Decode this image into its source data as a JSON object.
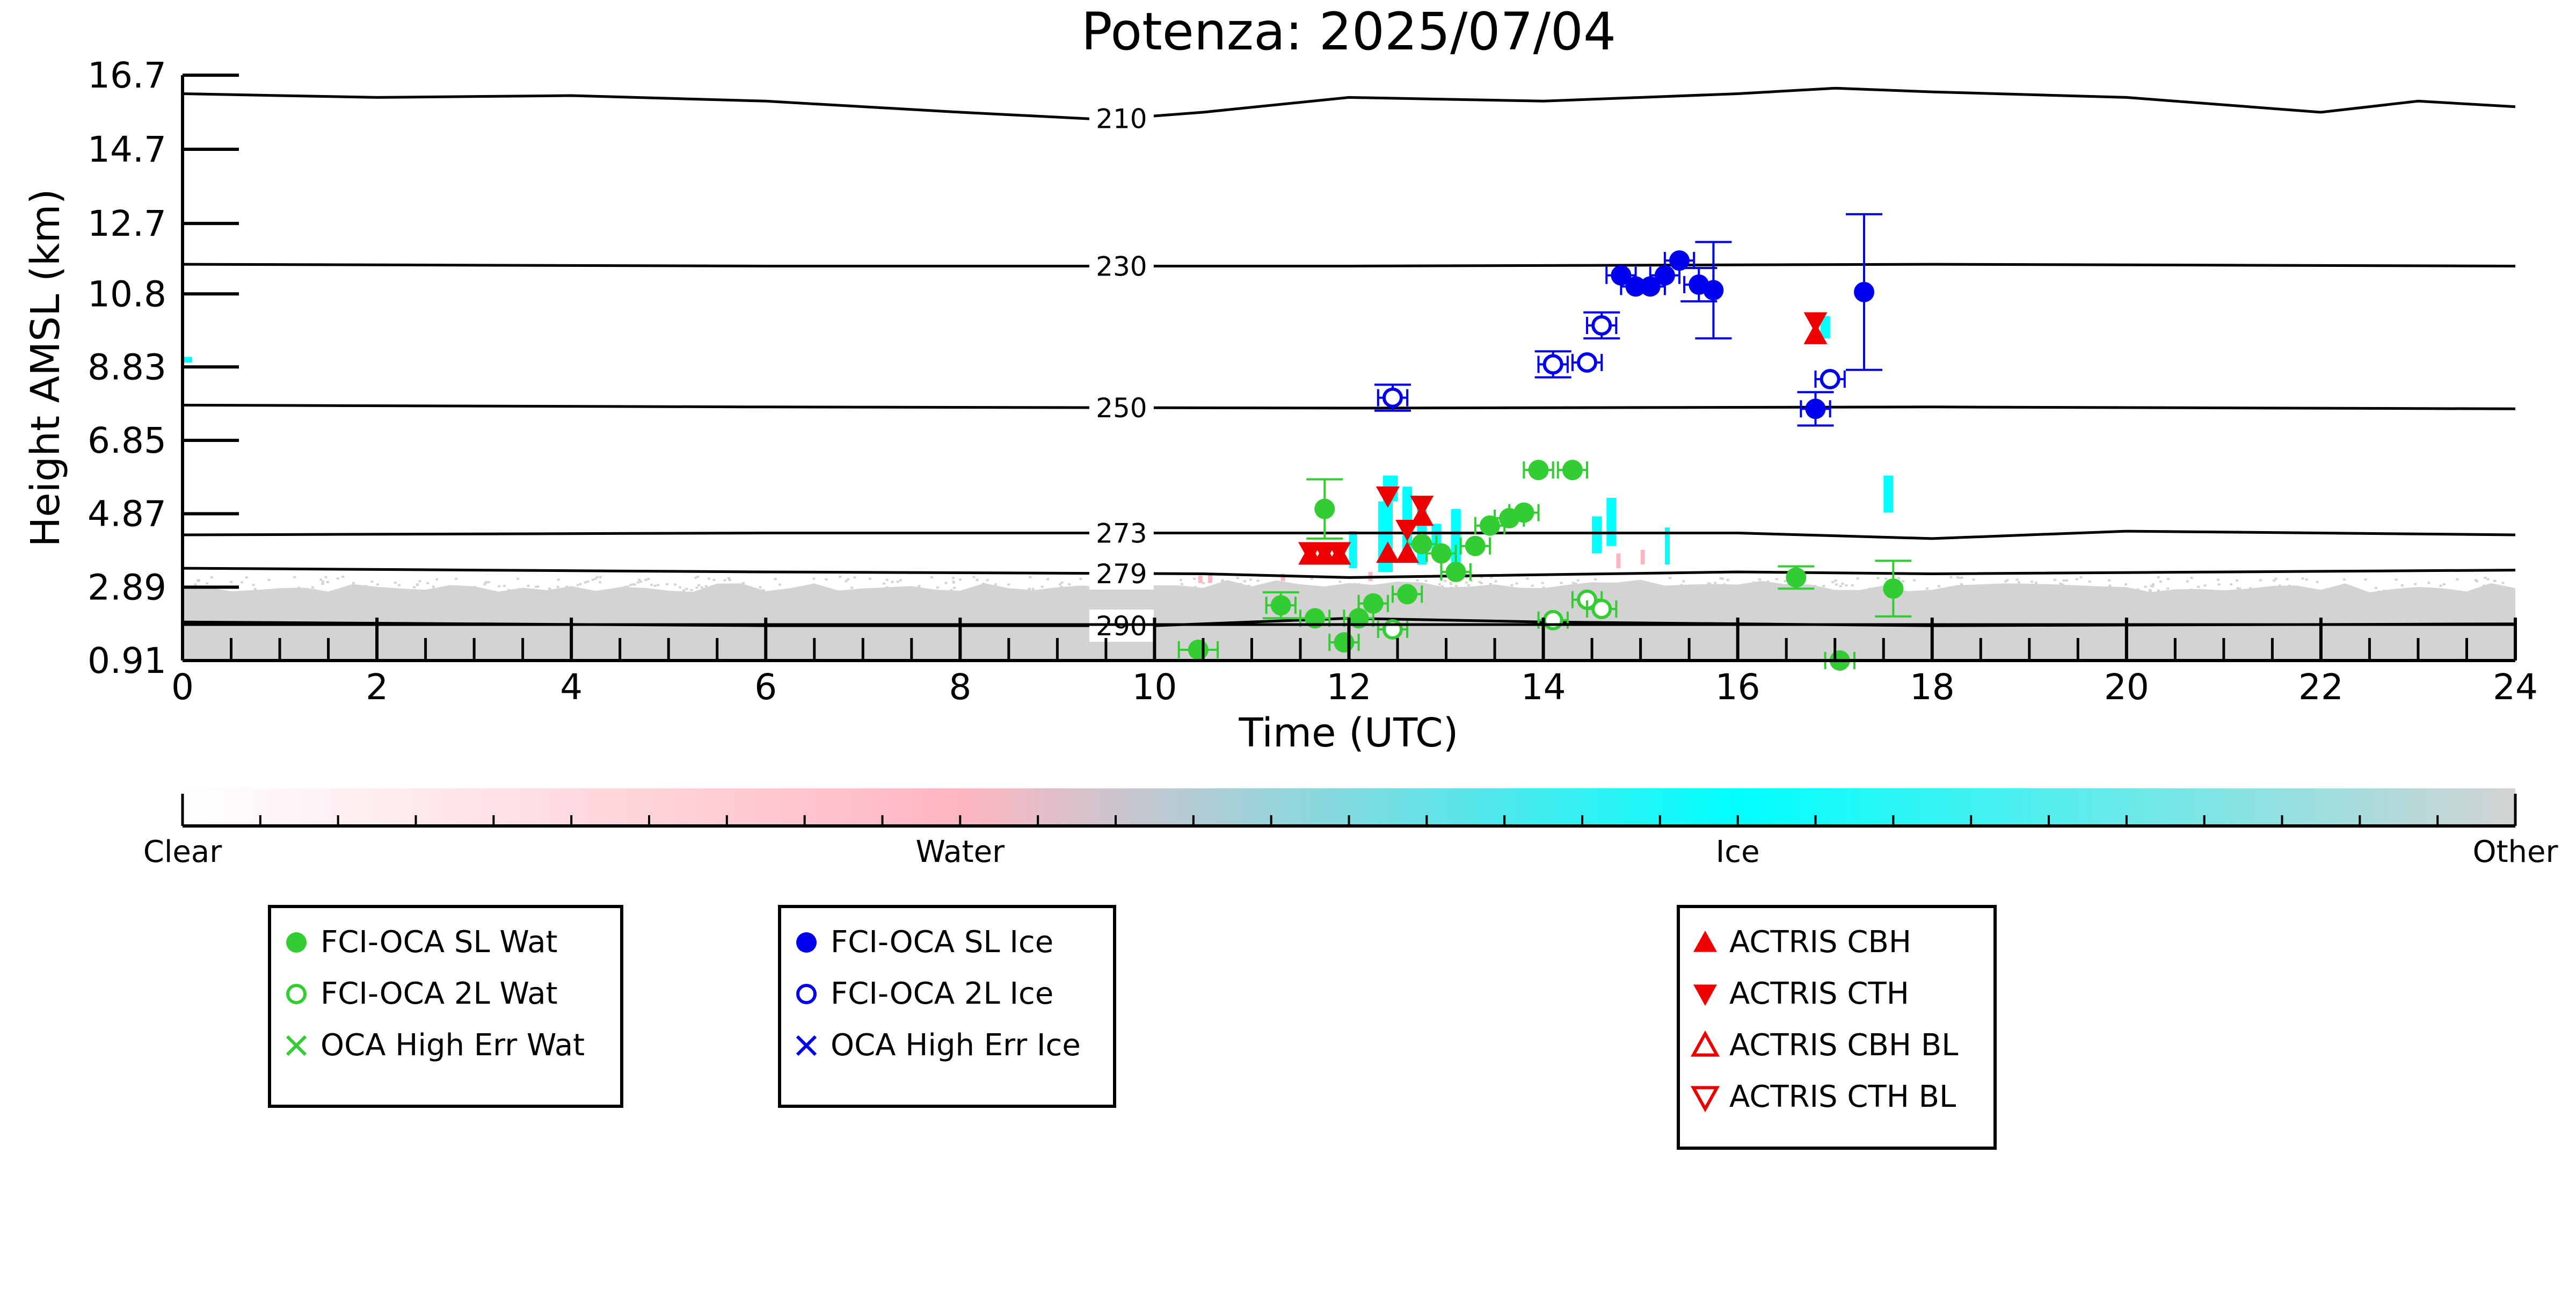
{
  "chart_data": {
    "type": "scatter",
    "title": "Potenza: 2025/07/04",
    "xlabel": "Time (UTC)",
    "ylabel": "Height AMSL (km)",
    "xlim": [
      0,
      24
    ],
    "ylim": [
      0.91,
      16.7
    ],
    "x_ticks": [
      "0",
      "2",
      "4",
      "6",
      "8",
      "10",
      "12",
      "14",
      "16",
      "18",
      "20",
      "22",
      "24"
    ],
    "y_ticks": [
      "0.91",
      "2.89",
      "4.87",
      "6.85",
      "8.83",
      "10.8",
      "12.7",
      "14.7",
      "16.7"
    ],
    "colors": {
      "water_marker": "#33cc33",
      "ice_marker": "#0000ee",
      "actris_marker": "#ee0000",
      "ice_mask": "#00ffff",
      "water_mask": "#ffb6c1",
      "other_mask": "#d3d3d3"
    },
    "isotherms": [
      {
        "label": "210",
        "points": [
          [
            0,
            16.2
          ],
          [
            2,
            16.1
          ],
          [
            4,
            16.15
          ],
          [
            6,
            16.0
          ],
          [
            8,
            15.7
          ],
          [
            9.5,
            15.5
          ],
          [
            10.5,
            15.7
          ],
          [
            12,
            16.1
          ],
          [
            14,
            16.0
          ],
          [
            16,
            16.2
          ],
          [
            17,
            16.35
          ],
          [
            18,
            16.25
          ],
          [
            20,
            16.1
          ],
          [
            22,
            15.7
          ],
          [
            23,
            16.0
          ],
          [
            24,
            15.85
          ]
        ]
      },
      {
        "label": "230",
        "points": [
          [
            0,
            11.6
          ],
          [
            6,
            11.55
          ],
          [
            12,
            11.55
          ],
          [
            18,
            11.6
          ],
          [
            24,
            11.55
          ]
        ]
      },
      {
        "label": "250",
        "points": [
          [
            0,
            7.8
          ],
          [
            6,
            7.75
          ],
          [
            12,
            7.72
          ],
          [
            18,
            7.75
          ],
          [
            24,
            7.7
          ]
        ]
      },
      {
        "label": "273",
        "points": [
          [
            0,
            4.3
          ],
          [
            6,
            4.35
          ],
          [
            12,
            4.35
          ],
          [
            16,
            4.35
          ],
          [
            18,
            4.2
          ],
          [
            20,
            4.4
          ],
          [
            24,
            4.3
          ]
        ]
      },
      {
        "label": "279",
        "points": [
          [
            0,
            3.4
          ],
          [
            6,
            3.3
          ],
          [
            10.5,
            3.25
          ],
          [
            12,
            3.15
          ],
          [
            16,
            3.3
          ],
          [
            18,
            3.25
          ],
          [
            24,
            3.35
          ]
        ]
      },
      {
        "label": "290",
        "points": [
          [
            0,
            1.95
          ],
          [
            6,
            1.85
          ],
          [
            10,
            1.85
          ],
          [
            12,
            2.05
          ],
          [
            14,
            1.95
          ],
          [
            18,
            1.85
          ],
          [
            24,
            1.9
          ]
        ]
      }
    ],
    "series": [
      {
        "name": "FCI-OCA SL Wat",
        "marker": "filled-circle",
        "color": "#33cc33",
        "points": [
          {
            "x": 10.45,
            "y": 1.2,
            "xerr": 0.2
          },
          {
            "x": 11.3,
            "y": 2.4,
            "yerr": 0.35,
            "xerr": 0.15
          },
          {
            "x": 11.65,
            "y": 2.05,
            "xerr": 0.15
          },
          {
            "x": 11.75,
            "y": 5.0,
            "yerr": 0.8
          },
          {
            "x": 11.95,
            "y": 1.4,
            "xerr": 0.15
          },
          {
            "x": 12.1,
            "y": 2.05,
            "xerr": 0.15
          },
          {
            "x": 12.25,
            "y": 2.45,
            "xerr": 0.15
          },
          {
            "x": 12.6,
            "y": 2.7,
            "xerr": 0.15
          },
          {
            "x": 12.75,
            "y": 4.05,
            "xerr": 0.15
          },
          {
            "x": 12.95,
            "y": 3.8,
            "xerr": 0.15
          },
          {
            "x": 13.1,
            "y": 3.3,
            "xerr": 0.15
          },
          {
            "x": 13.3,
            "y": 4.0,
            "xerr": 0.15
          },
          {
            "x": 13.45,
            "y": 4.55,
            "xerr": 0.15
          },
          {
            "x": 13.65,
            "y": 4.75,
            "xerr": 0.15
          },
          {
            "x": 13.8,
            "y": 4.9,
            "xerr": 0.15
          },
          {
            "x": 13.95,
            "y": 6.05,
            "xerr": 0.15
          },
          {
            "x": 14.3,
            "y": 6.05,
            "xerr": 0.15
          },
          {
            "x": 16.6,
            "y": 3.15,
            "yerr": 0.3
          },
          {
            "x": 17.05,
            "y": 0.91,
            "xerr": 0.15
          },
          {
            "x": 17.6,
            "y": 2.85,
            "yerr": 0.75
          }
        ]
      },
      {
        "name": "FCI-OCA 2L Wat",
        "marker": "open-circle",
        "color": "#33cc33",
        "points": [
          {
            "x": 12.45,
            "y": 1.75,
            "xerr": 0.15
          },
          {
            "x": 14.1,
            "y": 2.0,
            "xerr": 0.15
          },
          {
            "x": 14.45,
            "y": 2.55,
            "xerr": 0.15
          },
          {
            "x": 14.6,
            "y": 2.3,
            "xerr": 0.15
          }
        ]
      },
      {
        "name": "OCA High Err Wat",
        "marker": "x",
        "color": "#33cc33",
        "points": []
      },
      {
        "name": "FCI-OCA SL Ice",
        "marker": "filled-circle",
        "color": "#0000ee",
        "points": [
          {
            "x": 14.8,
            "y": 11.3,
            "xerr": 0.15
          },
          {
            "x": 14.95,
            "y": 11.0,
            "xerr": 0.15
          },
          {
            "x": 15.1,
            "y": 11.0,
            "xerr": 0.15
          },
          {
            "x": 15.25,
            "y": 11.3,
            "xerr": 0.15
          },
          {
            "x": 15.4,
            "y": 11.7,
            "xerr": 0.15
          },
          {
            "x": 15.6,
            "y": 11.05,
            "yerr": 0.45,
            "xerr": 0.15
          },
          {
            "x": 15.75,
            "y": 10.9,
            "yerr": 1.3
          },
          {
            "x": 16.8,
            "y": 7.7,
            "yerr": 0.45,
            "xerr": 0.15
          },
          {
            "x": 17.3,
            "y": 10.85,
            "yerr": 2.1
          }
        ]
      },
      {
        "name": "FCI-OCA 2L Ice",
        "marker": "open-circle",
        "color": "#0000ee",
        "points": [
          {
            "x": 12.45,
            "y": 8.0,
            "yerr": 0.35,
            "xerr": 0.15
          },
          {
            "x": 14.1,
            "y": 8.9,
            "yerr": 0.35,
            "xerr": 0.15
          },
          {
            "x": 14.45,
            "y": 8.95,
            "xerr": 0.15
          },
          {
            "x": 14.6,
            "y": 9.95,
            "yerr": 0.35,
            "xerr": 0.15
          },
          {
            "x": 16.95,
            "y": 8.5,
            "xerr": 0.15
          }
        ]
      },
      {
        "name": "OCA High Err Ice",
        "marker": "x",
        "color": "#0000ee",
        "points": []
      },
      {
        "name": "ACTRIS CBH",
        "marker": "filled-triangle-up",
        "color": "#ee0000",
        "points": [
          {
            "x": 11.6,
            "y": 3.75
          },
          {
            "x": 11.75,
            "y": 3.75
          },
          {
            "x": 11.9,
            "y": 3.75
          },
          {
            "x": 12.4,
            "y": 3.8
          },
          {
            "x": 12.6,
            "y": 3.8
          },
          {
            "x": 12.75,
            "y": 4.8
          },
          {
            "x": 16.8,
            "y": 9.7
          }
        ]
      },
      {
        "name": "ACTRIS CTH",
        "marker": "filled-triangle-down",
        "color": "#ee0000",
        "points": [
          {
            "x": 11.6,
            "y": 3.85
          },
          {
            "x": 11.75,
            "y": 3.85
          },
          {
            "x": 11.9,
            "y": 3.85
          },
          {
            "x": 12.4,
            "y": 5.35
          },
          {
            "x": 12.6,
            "y": 4.45
          },
          {
            "x": 12.75,
            "y": 5.1
          },
          {
            "x": 16.8,
            "y": 10.05
          }
        ]
      },
      {
        "name": "ACTRIS CBH BL",
        "marker": "open-triangle-up",
        "color": "#ee0000",
        "points": []
      },
      {
        "name": "ACTRIS CTH BL",
        "marker": "open-triangle-down",
        "color": "#ee0000",
        "points": []
      }
    ],
    "colorbar": {
      "labels": [
        "Clear",
        "Water",
        "Ice",
        "Other"
      ],
      "stops": [
        "#ffffff",
        "#ffb6c1",
        "#00ffff",
        "#d3d3d3"
      ]
    },
    "legends": [
      [
        "FCI-OCA SL Wat",
        "FCI-OCA 2L Wat",
        "OCA High Err Wat"
      ],
      [
        "FCI-OCA SL Ice",
        "FCI-OCA 2L Ice",
        "OCA High Err Ice"
      ],
      [
        "ACTRIS CBH",
        "ACTRIS CTH",
        "ACTRIS CBH BL",
        "ACTRIS CTH BL"
      ]
    ]
  }
}
